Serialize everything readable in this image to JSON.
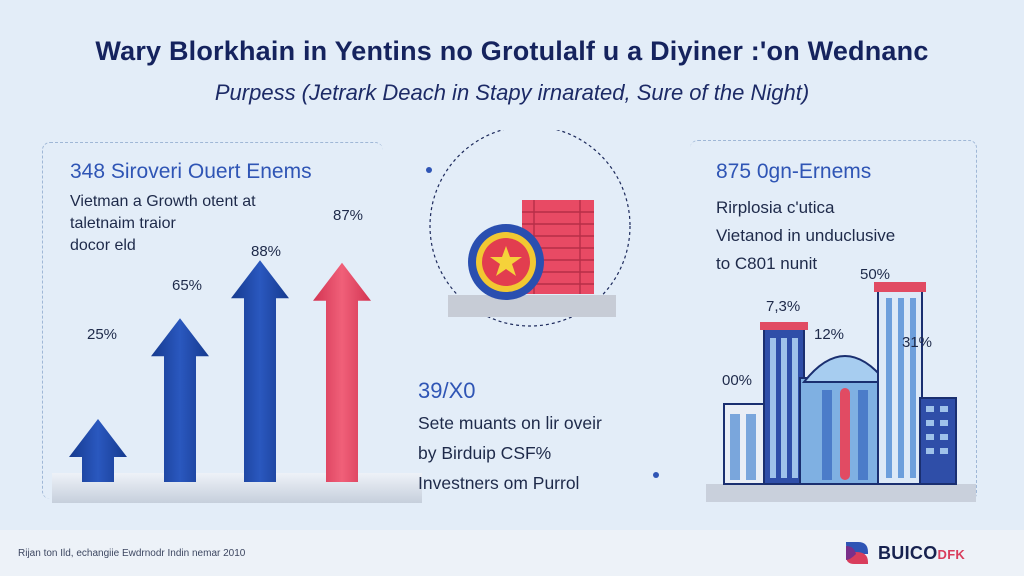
{
  "header": {
    "title": "Wary Blorkhain in Yentins no Grotulalf u a Diyiner :'on Wednanc",
    "subtitle": "Purpess (Jetrark Deach in Stapy irnarated, Sure of the Night)"
  },
  "left_panel": {
    "heading": "348 Siroveri Ouert Enems",
    "lines": [
      "Vietman a Growth otent at",
      "taletnaim traior",
      "docor eld"
    ],
    "chart_data": {
      "type": "bar",
      "categories": [
        "",
        "",
        "",
        ""
      ],
      "values": [
        25,
        65,
        88,
        87
      ],
      "labels": [
        "25%",
        "65%",
        "88%",
        "87%"
      ],
      "colors": [
        "#1f48a6",
        "#1f48a6",
        "#1f48a6",
        "#e2455f"
      ],
      "ylim": [
        0,
        100
      ]
    }
  },
  "middle": {
    "heading": "39/X0",
    "lines": [
      "Sete muants on lir oveir",
      "by Birduip CSF%",
      "Investners om Purrol"
    ]
  },
  "right_panel": {
    "heading": "875 0gn-Ernems",
    "lines": [
      "Rirplosia c'utica",
      "Vietanod in unduclusive",
      "to C801 nunit"
    ],
    "labels": [
      "50%",
      "7,3%",
      "12%",
      "31%",
      "00%"
    ]
  },
  "footer": {
    "note": "Rijan ton Ild, echangiie Ewdrnodr Indin nemar 2010",
    "brand_main": "BUICO",
    "brand_accent": "DFK"
  },
  "colors": {
    "blue": "#1f48a6",
    "red": "#e2455f",
    "navy": "#15235e",
    "accent_blue": "#2f55b5"
  }
}
